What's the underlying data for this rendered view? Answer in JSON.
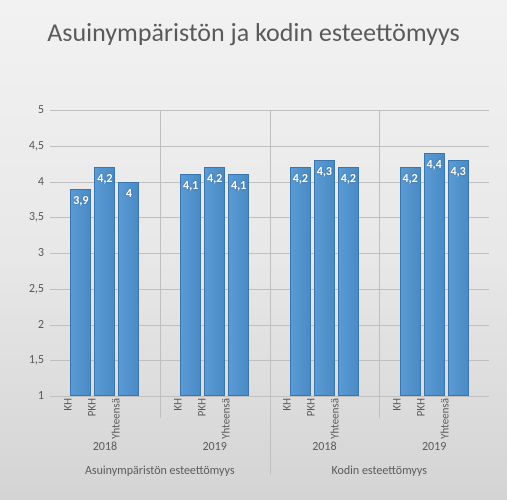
{
  "title": "Asuinympäristön ja kodin esteettömyys",
  "chart": {
    "type": "bar",
    "ylim": [
      1,
      5
    ],
    "ytick_step": 0.5,
    "yticks": [
      "1",
      "1,5",
      "2",
      "2,5",
      "3",
      "3,5",
      "4",
      "4,5",
      "5"
    ],
    "bar_color": "#5b9bd5",
    "bar_border": "#3a76ad",
    "grid_color": "#bfbfbf",
    "label_color": "#5a5a5a",
    "value_label_color": "#ffffff",
    "title_fontsize": 26,
    "axis_fontsize": 12,
    "categories_level2": [
      "Asuinympäristön esteettömyys",
      "Kodin esteettömyys"
    ],
    "categories_level1": [
      "2018",
      "2019",
      "2018",
      "2019"
    ],
    "series_names": [
      "KH",
      "PKH",
      "Yhteensä"
    ],
    "groups": [
      {
        "year": "2018",
        "top": "Asuinympäristön esteettömyys",
        "bars": [
          {
            "cat": "KH",
            "v": 3.9,
            "lbl": "3,9"
          },
          {
            "cat": "PKH",
            "v": 4.2,
            "lbl": "4,2"
          },
          {
            "cat": "Yhteensä",
            "v": 4.0,
            "lbl": "4"
          }
        ]
      },
      {
        "year": "2019",
        "top": "Asuinympäristön esteettömyys",
        "bars": [
          {
            "cat": "KH",
            "v": 4.1,
            "lbl": "4,1"
          },
          {
            "cat": "PKH",
            "v": 4.2,
            "lbl": "4,2"
          },
          {
            "cat": "Yhteensä",
            "v": 4.1,
            "lbl": "4,1"
          }
        ]
      },
      {
        "year": "2018",
        "top": "Kodin esteettömyys",
        "bars": [
          {
            "cat": "KH",
            "v": 4.2,
            "lbl": "4,2"
          },
          {
            "cat": "PKH",
            "v": 4.3,
            "lbl": "4,3"
          },
          {
            "cat": "Yhteensä",
            "v": 4.2,
            "lbl": "4,2"
          }
        ]
      },
      {
        "year": "2019",
        "top": "Kodin esteettömyys",
        "bars": [
          {
            "cat": "KH",
            "v": 4.2,
            "lbl": "4,2"
          },
          {
            "cat": "PKH",
            "v": 4.4,
            "lbl": "4,4"
          },
          {
            "cat": "Yhteensä",
            "v": 4.3,
            "lbl": "4,3"
          }
        ]
      }
    ]
  }
}
